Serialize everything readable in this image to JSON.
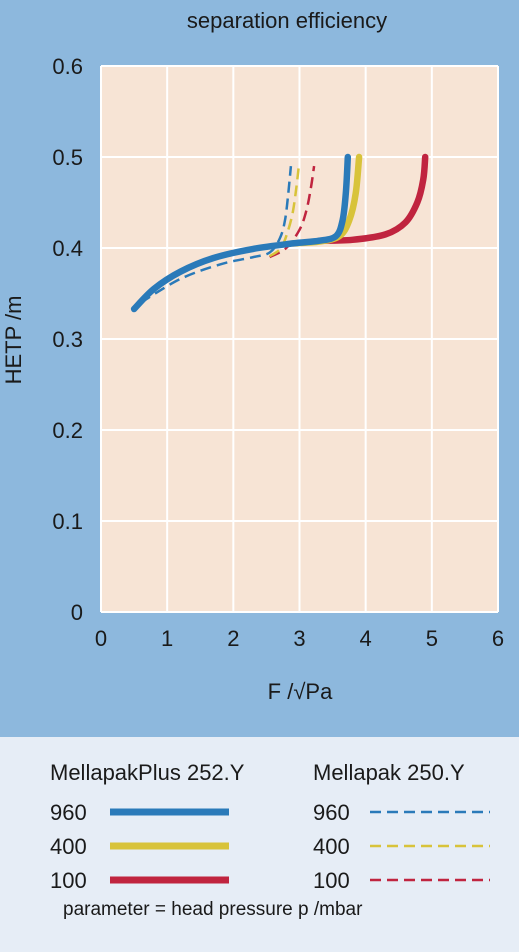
{
  "chart_data": {
    "type": "line",
    "title": "separation efficiency",
    "xlabel": "F /√Pa",
    "ylabel": "HETP /m",
    "xlim": [
      0,
      6
    ],
    "ylim": [
      0,
      0.6
    ],
    "xticks": [
      "0",
      "1",
      "2",
      "3",
      "4",
      "5",
      "6"
    ],
    "yticks": [
      "0",
      "0.1",
      "0.2",
      "0.3",
      "0.4",
      "0.5",
      "0.6"
    ],
    "grid": true,
    "colors": {
      "960": "#2a7ab9",
      "400": "#d8c33a",
      "100": "#c0243f",
      "plot_bg": "#f7e4d5",
      "outer_bg": "#8db8dd"
    },
    "series": [
      {
        "name": "MellapakPlus 252.Y 960",
        "style": "solid",
        "color": "#2a7ab9",
        "x": [
          0.5,
          0.8,
          1.2,
          1.7,
          2.3,
          2.9,
          3.3,
          3.55,
          3.65,
          3.7,
          3.73
        ],
        "y": [
          0.333,
          0.355,
          0.374,
          0.389,
          0.399,
          0.405,
          0.408,
          0.413,
          0.43,
          0.46,
          0.5
        ]
      },
      {
        "name": "MellapakPlus 252.Y 400",
        "style": "solid",
        "color": "#d8c33a",
        "x": [
          2.9,
          3.3,
          3.6,
          3.75,
          3.85,
          3.9
        ],
        "y": [
          0.405,
          0.407,
          0.413,
          0.43,
          0.46,
          0.5
        ]
      },
      {
        "name": "MellapakPlus 252.Y 100",
        "style": "solid",
        "color": "#c0243f",
        "x": [
          3.3,
          3.8,
          4.3,
          4.6,
          4.78,
          4.87,
          4.9
        ],
        "y": [
          0.408,
          0.409,
          0.415,
          0.428,
          0.45,
          0.475,
          0.5
        ]
      },
      {
        "name": "Mellapak 250.Y 960",
        "style": "dashed",
        "color": "#2a7ab9",
        "x": [
          0.6,
          1.2,
          1.8,
          2.3,
          2.55,
          2.7,
          2.78,
          2.83,
          2.87
        ],
        "y": [
          0.34,
          0.366,
          0.382,
          0.39,
          0.395,
          0.41,
          0.43,
          0.46,
          0.49
        ]
      },
      {
        "name": "Mellapak 250.Y 400",
        "style": "dashed",
        "color": "#d8c33a",
        "x": [
          2.55,
          2.72,
          2.83,
          2.9,
          2.95,
          2.99
        ],
        "y": [
          0.391,
          0.4,
          0.42,
          0.44,
          0.465,
          0.49
        ]
      },
      {
        "name": "Mellapak 250.Y 100",
        "style": "dashed",
        "color": "#c0243f",
        "x": [
          2.55,
          2.8,
          3.0,
          3.1,
          3.17,
          3.22
        ],
        "y": [
          0.39,
          0.4,
          0.42,
          0.44,
          0.465,
          0.49
        ]
      }
    ]
  },
  "legend": {
    "left_heading": "MellapakPlus 252.Y",
    "right_heading": "Mellapak 250.Y",
    "rows": [
      {
        "label": "960",
        "color": "#2a7ab9"
      },
      {
        "label": "400",
        "color": "#d8c33a"
      },
      {
        "label": "100",
        "color": "#c0243f"
      }
    ],
    "note": "parameter = head pressure p /mbar"
  }
}
